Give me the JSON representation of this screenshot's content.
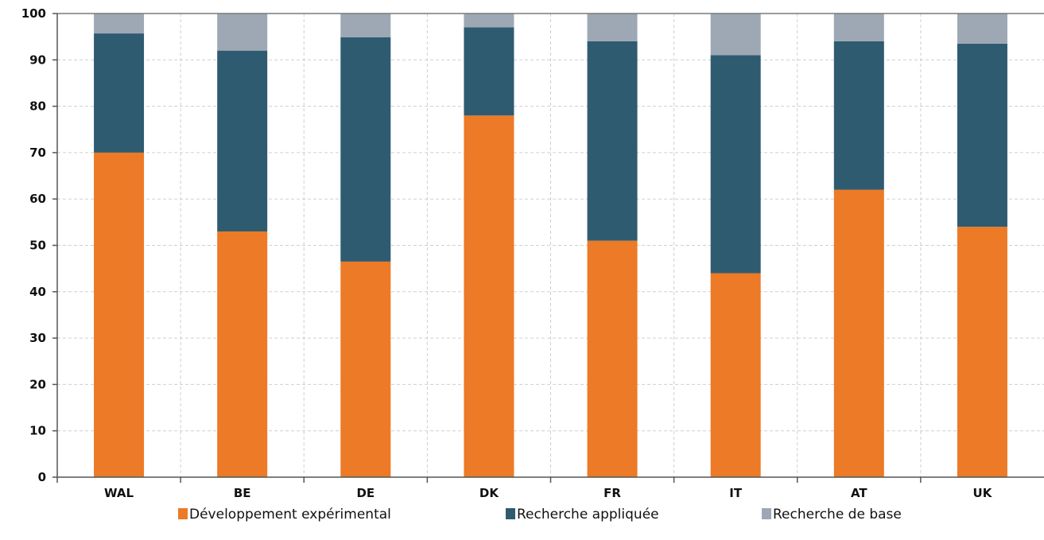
{
  "chart_data": {
    "type": "bar",
    "stacked": true,
    "categories": [
      "WAL",
      "BE",
      "DE",
      "DK",
      "FR",
      "IT",
      "AT",
      "UK"
    ],
    "series": [
      {
        "name": "Développement expérimental",
        "color": "#ec7a26",
        "values": [
          70,
          53,
          46.5,
          78,
          51,
          44,
          62,
          54
        ]
      },
      {
        "name": "Recherche appliquée",
        "color": "#2f5b71",
        "values": [
          25.7,
          39,
          48.4,
          19,
          43,
          47,
          32,
          39.5
        ]
      },
      {
        "name": "Recherche de base",
        "color": "#9da8b4",
        "values": [
          4.3,
          8,
          5.1,
          3,
          6,
          9,
          6,
          6.5
        ]
      }
    ],
    "ylim": [
      0,
      100
    ],
    "yticks": [
      0,
      10,
      20,
      30,
      40,
      50,
      60,
      70,
      80,
      90,
      100
    ],
    "grid": true,
    "legend_position": "bottom",
    "title": "",
    "xlabel": "",
    "ylabel": ""
  }
}
